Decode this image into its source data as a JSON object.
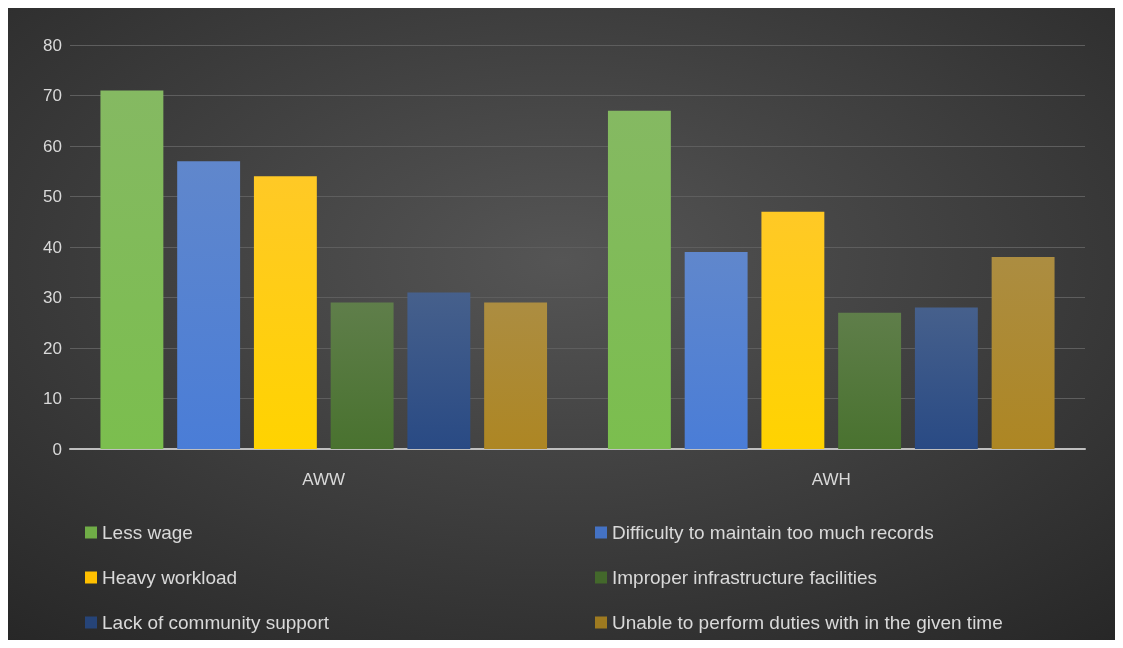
{
  "chart_data": {
    "type": "bar",
    "categories": [
      "AWW",
      "AWH"
    ],
    "series": [
      {
        "name": "Less wage",
        "color": "#70ad47",
        "values": [
          71,
          67
        ]
      },
      {
        "name": "Difficulty to maintain too much records",
        "color": "#4472c4",
        "values": [
          57,
          39
        ]
      },
      {
        "name": "Heavy workload",
        "color": "#ffc000",
        "values": [
          54,
          47
        ]
      },
      {
        "name": "Improper infrastructure facilities",
        "color": "#43682b",
        "values": [
          29,
          27
        ]
      },
      {
        "name": "Lack of community support",
        "color": "#264478",
        "values": [
          31,
          28
        ]
      },
      {
        "name": "Unable to perform duties with in the given time",
        "color": "#9e7a20",
        "values": [
          29,
          38
        ]
      }
    ],
    "ylim": [
      0,
      80
    ],
    "yticks": [
      0,
      10,
      20,
      30,
      40,
      50,
      60,
      70,
      80
    ],
    "grid": "y",
    "legend": "bottom"
  }
}
